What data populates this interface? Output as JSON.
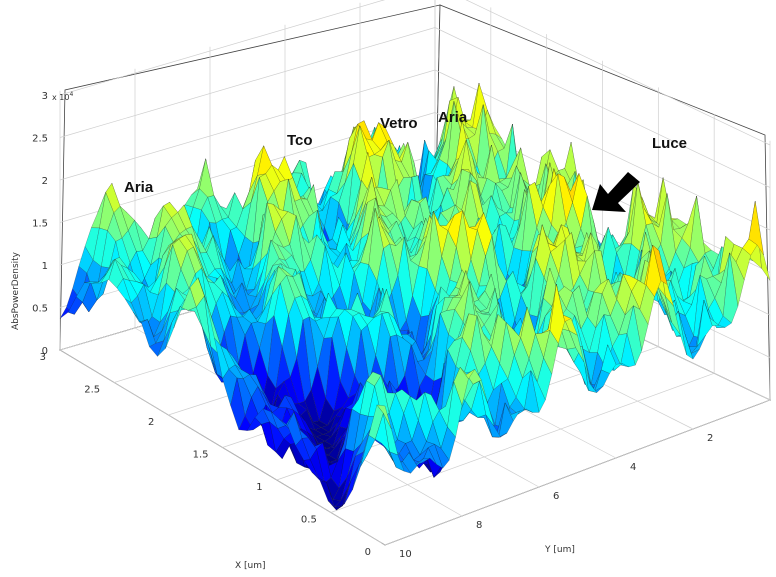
{
  "chart_data": {
    "type": "surface",
    "zlabel": "AbsPowerDensity",
    "xlabel": "X [um]",
    "ylabel": "Y [um]",
    "z_multiplier": "x 10",
    "z_multiplier_exp": "4",
    "x_ticks": [
      "0",
      "0.5",
      "1",
      "1.5",
      "2",
      "2.5",
      "3"
    ],
    "y_ticks": [
      "10",
      "8",
      "6",
      "4",
      "2",
      "0"
    ],
    "z_ticks": [
      "0",
      "0.5",
      "1",
      "1.5",
      "2",
      "2.5",
      "3"
    ],
    "xlim": [
      0,
      3
    ],
    "ylim": [
      0,
      10
    ],
    "zlim": [
      0,
      3
    ],
    "colormap": "jet",
    "annotations": [
      "Aria",
      "Tco",
      "Vetro",
      "Aria",
      "Luce"
    ],
    "arrow_color": "#000000"
  }
}
